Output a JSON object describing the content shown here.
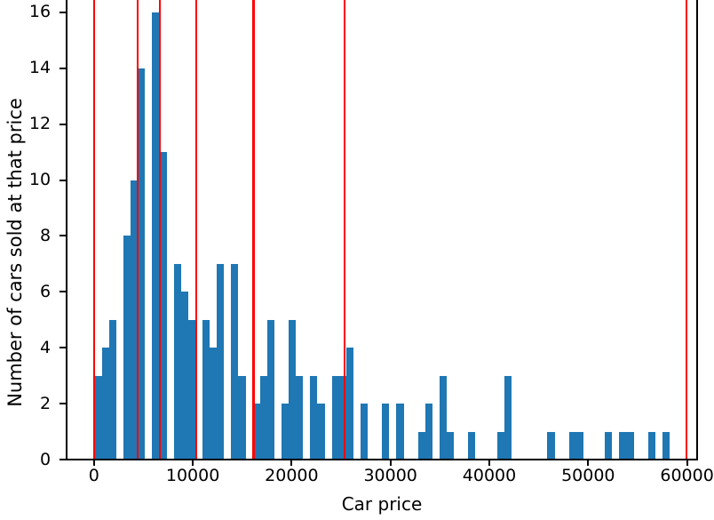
{
  "chart_data": {
    "type": "bar",
    "subtype": "histogram",
    "title": "",
    "xlabel": "Car price",
    "ylabel": "Number of cars sold at that price",
    "x_ticks": [
      0,
      10000,
      20000,
      30000,
      40000,
      50000,
      60000
    ],
    "y_ticks": [
      0,
      2,
      4,
      6,
      8,
      10,
      12,
      14,
      16
    ],
    "xlim": [
      -2900,
      61100
    ],
    "ylim_visible": [
      0,
      16.45
    ],
    "grid": false,
    "legend": null,
    "first_bin_start": 63,
    "bin_width": 727,
    "bin_counts": [
      3,
      4,
      5,
      0,
      8,
      10,
      14,
      0,
      16,
      11,
      0,
      7,
      6,
      5,
      0,
      5,
      4,
      7,
      0,
      7,
      3,
      0,
      2,
      3,
      5,
      0,
      2,
      5,
      3,
      0,
      3,
      2,
      0,
      3,
      3,
      4,
      0,
      2,
      0,
      0,
      2,
      0,
      2,
      0,
      0,
      1,
      2,
      0,
      3,
      1,
      0,
      0,
      1,
      0,
      0,
      0,
      1,
      3,
      0,
      0,
      0,
      0,
      0,
      1,
      0,
      0,
      1,
      1,
      0,
      0,
      0,
      1,
      0,
      1,
      1,
      0,
      0,
      1,
      0,
      1
    ],
    "total_cars": 176,
    "red_vlines_price": [
      0,
      4400,
      6660,
      10320,
      16140,
      25340,
      59950
    ],
    "colors": {
      "bar": "#1f77b4",
      "vline": "#ff0000",
      "axis": "#000000",
      "text": "#000000",
      "background": "#ffffff"
    }
  }
}
